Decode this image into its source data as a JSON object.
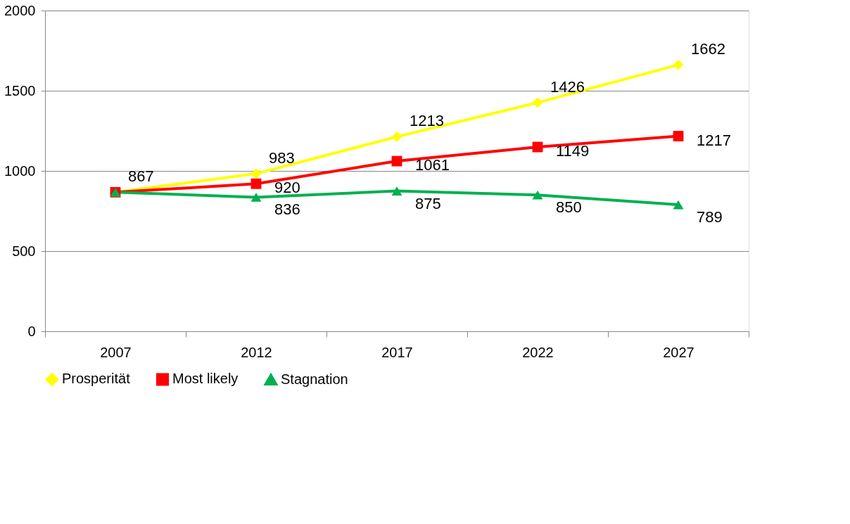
{
  "chart_data": {
    "type": "line",
    "categories": [
      "2007",
      "2012",
      "2017",
      "2022",
      "2027"
    ],
    "series": [
      {
        "name": "Prosperität",
        "color": "#ffff00",
        "marker": "diamond",
        "values": [
          867,
          983,
          1213,
          1426,
          1662
        ],
        "value_labels": [
          "867",
          "983",
          "1213",
          "1426",
          "1662"
        ]
      },
      {
        "name": "Most likely",
        "color": "#ff0000",
        "marker": "square",
        "values": [
          867,
          920,
          1061,
          1149,
          1217
        ],
        "value_labels": [
          null,
          "920",
          "1061",
          "1149",
          "1217"
        ]
      },
      {
        "name": "Stagnation",
        "color": "#00b050",
        "marker": "triangle",
        "values": [
          867,
          836,
          875,
          850,
          789
        ],
        "value_labels": [
          null,
          "836",
          "875",
          "850",
          "789"
        ]
      }
    ],
    "ylim": [
      0,
      2000
    ],
    "yticks": [
      0,
      500,
      1000,
      1500,
      2000
    ],
    "grid": "y",
    "legend": "bottom",
    "line_style": "solid"
  }
}
